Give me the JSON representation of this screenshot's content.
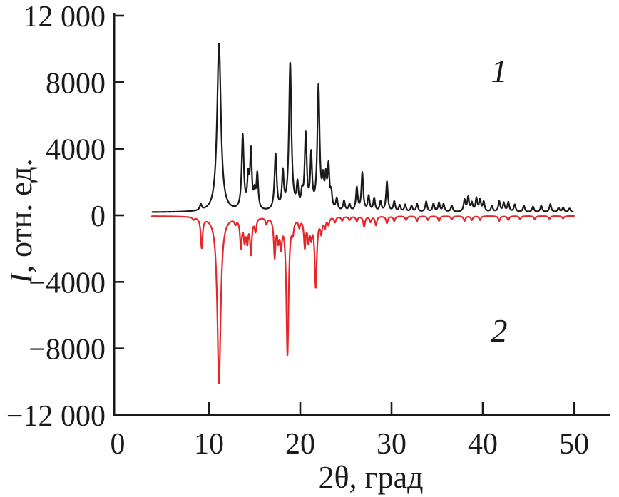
{
  "chart_data": {
    "type": "line",
    "subtype": "xrd-diffractogram-mirrored",
    "xlabel": "2θ, град",
    "ylabel": "I, отн. ед.",
    "ylabel_italic": "I",
    "ylabel_rest": ", отн. ед.",
    "xlim": [
      0,
      53.7
    ],
    "ylim": [
      -12000,
      12000
    ],
    "x_ticks": [
      0,
      10,
      20,
      30,
      40,
      50
    ],
    "y_ticks": [
      {
        "value": 12000,
        "label": "12 000"
      },
      {
        "value": 8000,
        "label": "8000"
      },
      {
        "value": 4000,
        "label": "4000"
      },
      {
        "value": 0,
        "label": "0"
      },
      {
        "value": -4000,
        "label": "−4000"
      },
      {
        "value": -8000,
        "label": "−8000"
      },
      {
        "value": -12000,
        "label": "−12 000"
      }
    ],
    "grid": false,
    "legend_position": "inline-annotations",
    "axis_color": "#1a1a1a",
    "series": [
      {
        "name": "1",
        "color": "#1a1a1a",
        "baseline_offset": 180,
        "x_range": [
          3.8,
          49.9
        ],
        "peak_width_default": 0.12,
        "annotation": {
          "text": "1",
          "x": 41.8,
          "y": 8700
        },
        "peaks": [
          [
            9.1,
            350
          ],
          [
            11.1,
            10100,
            0.25
          ],
          [
            13.7,
            4450,
            0.14
          ],
          [
            14.3,
            1800
          ],
          [
            14.6,
            3400
          ],
          [
            15.0,
            900
          ],
          [
            15.3,
            2100
          ],
          [
            17.3,
            3350,
            0.14
          ],
          [
            18.1,
            2150
          ],
          [
            18.9,
            8800,
            0.16
          ],
          [
            19.7,
            1400
          ],
          [
            20.2,
            800
          ],
          [
            20.6,
            4450,
            0.14
          ],
          [
            21.2,
            3150
          ],
          [
            22.0,
            7400,
            0.15
          ],
          [
            22.5,
            1500
          ],
          [
            22.8,
            1700
          ],
          [
            23.1,
            2450
          ],
          [
            23.4,
            900
          ],
          [
            24.0,
            700
          ],
          [
            24.8,
            600
          ],
          [
            25.4,
            400
          ],
          [
            26.2,
            1400
          ],
          [
            26.8,
            2300
          ],
          [
            27.5,
            900
          ],
          [
            28.1,
            780
          ],
          [
            28.8,
            580
          ],
          [
            29.5,
            1800
          ],
          [
            30.3,
            600
          ],
          [
            30.9,
            380
          ],
          [
            31.5,
            420
          ],
          [
            32.2,
            350
          ],
          [
            32.8,
            470
          ],
          [
            33.8,
            620
          ],
          [
            34.6,
            490
          ],
          [
            35.2,
            550
          ],
          [
            35.7,
            460
          ],
          [
            36.6,
            380
          ],
          [
            38.0,
            700
          ],
          [
            38.4,
            840
          ],
          [
            38.8,
            500
          ],
          [
            39.3,
            780
          ],
          [
            39.7,
            700
          ],
          [
            40.1,
            580
          ],
          [
            41.0,
            350
          ],
          [
            41.8,
            620
          ],
          [
            42.3,
            530
          ],
          [
            42.8,
            580
          ],
          [
            43.5,
            440
          ],
          [
            44.5,
            380
          ],
          [
            45.5,
            330
          ],
          [
            46.4,
            380
          ],
          [
            47.4,
            480
          ],
          [
            48.3,
            250
          ],
          [
            48.8,
            270
          ],
          [
            49.5,
            220
          ]
        ]
      },
      {
        "name": "2",
        "color": "#e62629",
        "baseline_offset": -40,
        "x_range": [
          3.75,
          50.0
        ],
        "peak_width_default": 0.12,
        "annotation": {
          "text": "2",
          "x": 41.8,
          "y": -6900
        },
        "peaks": [
          [
            8.3,
            -150
          ],
          [
            9.2,
            -1800
          ],
          [
            11.1,
            -10050,
            0.22
          ],
          [
            12.9,
            -300
          ],
          [
            13.5,
            -1700
          ],
          [
            13.9,
            -1250
          ],
          [
            14.2,
            -1300
          ],
          [
            14.6,
            -2100
          ],
          [
            15.1,
            -780
          ],
          [
            16.3,
            -380
          ],
          [
            17.2,
            -2300
          ],
          [
            17.6,
            -1150
          ],
          [
            17.9,
            -1500
          ],
          [
            18.6,
            -8250,
            0.15
          ],
          [
            19.2,
            -680
          ],
          [
            19.9,
            -480
          ],
          [
            20.5,
            -1700
          ],
          [
            20.9,
            -1250
          ],
          [
            21.2,
            -1000
          ],
          [
            21.7,
            -4150,
            0.14
          ],
          [
            22.3,
            -850
          ],
          [
            22.7,
            -580
          ],
          [
            23.1,
            -430
          ],
          [
            23.8,
            -330
          ],
          [
            24.6,
            -250
          ],
          [
            25.4,
            -220
          ],
          [
            26.2,
            -290
          ],
          [
            27.0,
            -620
          ],
          [
            27.7,
            -330
          ],
          [
            28.3,
            -540
          ],
          [
            29.5,
            -420
          ],
          [
            30.3,
            -290
          ],
          [
            31.6,
            -240
          ],
          [
            32.8,
            -290
          ],
          [
            34.0,
            -240
          ],
          [
            35.2,
            -290
          ],
          [
            36.6,
            -200
          ],
          [
            38.0,
            -290
          ],
          [
            38.8,
            -240
          ],
          [
            39.7,
            -240
          ],
          [
            41.8,
            -290
          ],
          [
            42.8,
            -240
          ],
          [
            44.1,
            -200
          ],
          [
            45.7,
            -190
          ],
          [
            47.3,
            -170
          ],
          [
            48.8,
            -150
          ]
        ]
      }
    ]
  }
}
